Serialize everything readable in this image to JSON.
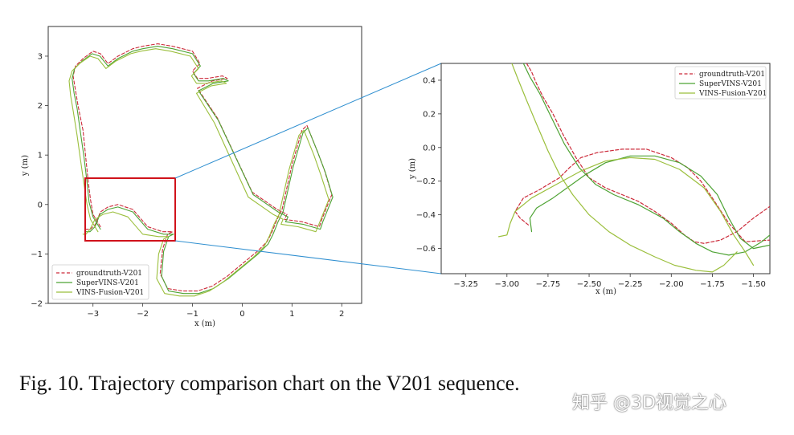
{
  "caption": "Fig. 10.  Trajectory comparison chart on the V201 sequence.",
  "watermark": "知乎 @3D视觉之心",
  "colors": {
    "groundtruth": "#cc2b3a",
    "supervins": "#4ea334",
    "vinsfusion": "#9bbf3c",
    "highlight_box": "#d0121b",
    "zoom_lines": "#2f8fd0"
  },
  "chart_data": [
    {
      "type": "line",
      "panel": "main",
      "xlabel": "x (m)",
      "ylabel": "y (m)",
      "xlim": [
        -3.9,
        2.4
      ],
      "ylim": [
        -2.0,
        3.6
      ],
      "xticks": [
        -3,
        -2,
        -1,
        0,
        1,
        2
      ],
      "yticks": [
        -2,
        -1,
        0,
        1,
        2,
        3
      ],
      "grid": false,
      "legend_position": "lower-left",
      "highlight_region": {
        "x": [
          -3.25,
          -1.4
        ],
        "y": [
          -0.75,
          0.5
        ]
      },
      "series": [
        {
          "name": "groundtruth-V201",
          "style": "dashed",
          "color_key": "groundtruth",
          "x": [
            -2.85,
            -3.0,
            -3.05,
            -3.1,
            -3.15,
            -3.2,
            -3.3,
            -3.35,
            -3.4,
            -3.35,
            -3.2,
            -3.0,
            -2.85,
            -2.7,
            -2.5,
            -2.2,
            -2.0,
            -1.7,
            -1.4,
            -1.0,
            -0.85,
            -1.0,
            -0.9,
            -0.7,
            -0.4,
            -0.3,
            -0.6,
            -0.9,
            -0.5,
            0.2,
            0.7,
            0.9,
            0.85,
            1.2,
            1.55,
            1.6,
            1.8,
            1.65,
            1.5,
            1.3,
            1.2,
            1.0,
            0.8,
            0.7,
            0.6,
            0.5,
            0.3,
            0.0,
            -0.3,
            -0.6,
            -0.9,
            -1.2,
            -1.5,
            -1.65,
            -1.6,
            -1.5,
            -1.4,
            -1.6,
            -1.9,
            -2.2,
            -2.5,
            -2.7,
            -2.85,
            -2.95,
            -3.05,
            -3.15
          ],
          "y": [
            -0.45,
            -0.2,
            0.1,
            0.5,
            1.0,
            1.5,
            2.0,
            2.3,
            2.6,
            2.8,
            2.95,
            3.1,
            3.05,
            2.85,
            3.0,
            3.15,
            3.2,
            3.25,
            3.2,
            3.1,
            2.85,
            2.7,
            2.55,
            2.55,
            2.6,
            2.55,
            2.5,
            2.35,
            1.75,
            0.25,
            -0.1,
            -0.2,
            -0.3,
            -0.35,
            -0.45,
            -0.3,
            0.2,
            0.7,
            1.1,
            1.6,
            1.5,
            0.8,
            -0.1,
            -0.3,
            -0.55,
            -0.75,
            -0.95,
            -1.2,
            -1.45,
            -1.65,
            -1.75,
            -1.75,
            -1.7,
            -1.4,
            -0.9,
            -0.6,
            -0.55,
            -0.55,
            -0.45,
            -0.1,
            0.0,
            -0.05,
            -0.15,
            -0.4,
            -0.5,
            -0.5
          ]
        },
        {
          "name": "SuperVINS-V201",
          "style": "solid",
          "color_key": "supervins",
          "x": [
            -2.85,
            -3.0,
            -3.08,
            -3.12,
            -3.18,
            -3.25,
            -3.32,
            -3.38,
            -3.42,
            -3.37,
            -3.22,
            -3.02,
            -2.86,
            -2.7,
            -2.5,
            -2.2,
            -2.0,
            -1.7,
            -1.4,
            -1.0,
            -0.84,
            -0.98,
            -0.88,
            -0.68,
            -0.38,
            -0.28,
            -0.58,
            -0.88,
            -0.48,
            0.22,
            0.72,
            0.92,
            0.87,
            1.22,
            1.57,
            1.62,
            1.82,
            1.67,
            1.52,
            1.32,
            1.22,
            1.02,
            0.82,
            0.72,
            0.62,
            0.52,
            0.32,
            0.02,
            -0.28,
            -0.58,
            -0.88,
            -1.18,
            -1.48,
            -1.62,
            -1.58,
            -1.48,
            -1.38,
            -1.58,
            -1.9,
            -2.2,
            -2.5,
            -2.7,
            -2.86,
            -2.96,
            -3.06,
            -3.14
          ],
          "y": [
            -0.5,
            -0.25,
            0.05,
            0.45,
            0.95,
            1.45,
            1.95,
            2.25,
            2.55,
            2.75,
            2.9,
            3.05,
            3.0,
            2.8,
            2.95,
            3.1,
            3.15,
            3.2,
            3.15,
            3.05,
            2.8,
            2.65,
            2.5,
            2.5,
            2.55,
            2.5,
            2.45,
            2.3,
            1.7,
            0.2,
            -0.15,
            -0.25,
            -0.35,
            -0.4,
            -0.5,
            -0.35,
            0.15,
            0.65,
            1.05,
            1.55,
            1.45,
            0.75,
            -0.15,
            -0.35,
            -0.6,
            -0.8,
            -1.0,
            -1.25,
            -1.5,
            -1.7,
            -1.8,
            -1.8,
            -1.75,
            -1.45,
            -0.95,
            -0.65,
            -0.6,
            -0.6,
            -0.5,
            -0.15,
            -0.05,
            -0.1,
            -0.2,
            -0.45,
            -0.55,
            -0.55
          ]
        },
        {
          "name": "VINS-Fusion-V201",
          "style": "solid",
          "color_key": "vinsfusion",
          "x": [
            -2.9,
            -3.05,
            -3.12,
            -3.18,
            -3.25,
            -3.32,
            -3.4,
            -3.45,
            -3.48,
            -3.42,
            -3.27,
            -3.06,
            -2.9,
            -2.74,
            -2.54,
            -2.24,
            -2.04,
            -1.74,
            -1.44,
            -1.04,
            -0.88,
            -1.02,
            -0.92,
            -0.72,
            -0.42,
            -0.32,
            -0.62,
            -0.92,
            -0.56,
            0.12,
            0.62,
            0.82,
            0.78,
            1.12,
            1.48,
            1.54,
            1.74,
            1.58,
            1.44,
            1.24,
            1.14,
            0.94,
            0.74,
            0.64,
            0.54,
            0.44,
            0.24,
            -0.06,
            -0.36,
            -0.66,
            -0.96,
            -1.26,
            -1.56,
            -1.72,
            -1.68,
            -1.58,
            -1.48,
            -1.68,
            -2.0,
            -2.3,
            -2.6,
            -2.8,
            -2.96,
            -3.06,
            -3.14,
            -3.2
          ],
          "y": [
            -0.55,
            -0.3,
            0.0,
            0.4,
            0.9,
            1.4,
            1.9,
            2.2,
            2.5,
            2.7,
            2.85,
            3.0,
            2.95,
            2.75,
            2.9,
            3.05,
            3.1,
            3.15,
            3.1,
            3.0,
            2.75,
            2.6,
            2.45,
            2.45,
            2.5,
            2.45,
            2.4,
            2.25,
            1.65,
            0.15,
            -0.2,
            -0.3,
            -0.4,
            -0.45,
            -0.55,
            -0.4,
            0.1,
            0.6,
            1.0,
            1.5,
            1.4,
            0.7,
            -0.2,
            -0.4,
            -0.65,
            -0.85,
            -1.05,
            -1.3,
            -1.55,
            -1.75,
            -1.85,
            -1.85,
            -1.8,
            -1.5,
            -1.0,
            -0.7,
            -0.65,
            -0.65,
            -0.6,
            -0.25,
            -0.15,
            -0.2,
            -0.3,
            -0.5,
            -0.6,
            -0.6
          ]
        }
      ]
    },
    {
      "type": "line",
      "panel": "zoom",
      "xlabel": "x (m)",
      "ylabel": "y (m)",
      "xlim": [
        -3.4,
        -1.4
      ],
      "ylim": [
        -0.75,
        0.5
      ],
      "xticks": [
        -3.25,
        -3.0,
        -2.75,
        -2.5,
        -2.25,
        -2.0,
        -1.75,
        -1.5
      ],
      "xtick_labels": [
        "−3.25",
        "−3.00",
        "−2.75",
        "−2.50",
        "−2.25",
        "−2.00",
        "−1.75",
        "−1.50"
      ],
      "yticks": [
        -0.6,
        -0.4,
        -0.2,
        0.0,
        0.2,
        0.4
      ],
      "ytick_labels": [
        "−0.6",
        "−0.4",
        "−0.2",
        "0.0",
        "0.2",
        "0.4"
      ],
      "grid": false,
      "legend_position": "upper-right",
      "series": [
        {
          "name": "groundtruth-V201",
          "style": "dashed",
          "color_key": "groundtruth",
          "x": [
            -2.87,
            -2.92,
            -2.95,
            -2.9,
            -2.8,
            -2.75,
            -2.68,
            -2.62,
            -2.55,
            -2.45,
            -2.3,
            -2.15,
            -2.0,
            -1.9,
            -1.82,
            -1.75,
            -1.65,
            -1.55,
            -1.4
          ],
          "y": [
            -0.46,
            -0.42,
            -0.38,
            -0.3,
            -0.25,
            -0.22,
            -0.18,
            -0.12,
            -0.06,
            -0.03,
            -0.01,
            -0.01,
            -0.06,
            -0.12,
            -0.2,
            -0.3,
            -0.45,
            -0.56,
            -0.55
          ],
          "x2": [
            -2.88,
            -2.85,
            -2.82,
            -2.78,
            -2.72,
            -2.66,
            -2.58,
            -2.5,
            -2.4,
            -2.3,
            -2.2,
            -2.1,
            -2.0,
            -1.92,
            -1.86,
            -1.8,
            -1.7,
            -1.6,
            -1.5,
            -1.4
          ],
          "y2": [
            0.5,
            0.45,
            0.38,
            0.3,
            0.2,
            0.08,
            -0.06,
            -0.18,
            -0.24,
            -0.28,
            -0.32,
            -0.38,
            -0.45,
            -0.52,
            -0.56,
            -0.57,
            -0.55,
            -0.5,
            -0.42,
            -0.35
          ]
        },
        {
          "name": "SuperVINS-V201",
          "style": "solid",
          "color_key": "supervins",
          "x": [
            -2.85,
            -2.86,
            -2.82,
            -2.72,
            -2.62,
            -2.52,
            -2.4,
            -2.25,
            -2.1,
            -1.95,
            -1.82,
            -1.72,
            -1.65,
            -1.58,
            -1.5,
            -1.4
          ],
          "y": [
            -0.5,
            -0.42,
            -0.36,
            -0.3,
            -0.23,
            -0.16,
            -0.09,
            -0.05,
            -0.05,
            -0.09,
            -0.17,
            -0.28,
            -0.42,
            -0.54,
            -0.6,
            -0.58
          ],
          "x2": [
            -2.9,
            -2.86,
            -2.8,
            -2.73,
            -2.65,
            -2.56,
            -2.46,
            -2.35,
            -2.2,
            -2.05,
            -1.95,
            -1.85,
            -1.75,
            -1.65,
            -1.55,
            -1.45,
            -1.4
          ],
          "y2": [
            0.5,
            0.42,
            0.32,
            0.18,
            0.02,
            -0.12,
            -0.22,
            -0.28,
            -0.34,
            -0.42,
            -0.5,
            -0.57,
            -0.62,
            -0.64,
            -0.62,
            -0.56,
            -0.52
          ]
        },
        {
          "name": "VINS-Fusion-V201",
          "style": "solid",
          "color_key": "vinsfusion",
          "x": [
            -3.05,
            -3.0,
            -2.98,
            -2.95,
            -2.85,
            -2.7,
            -2.55,
            -2.4,
            -2.25,
            -2.1,
            -1.95,
            -1.8,
            -1.7,
            -1.62,
            -1.55,
            -1.5
          ],
          "y": [
            -0.53,
            -0.52,
            -0.45,
            -0.38,
            -0.3,
            -0.22,
            -0.14,
            -0.08,
            -0.06,
            -0.07,
            -0.13,
            -0.24,
            -0.38,
            -0.52,
            -0.62,
            -0.7
          ],
          "x2": [
            -2.97,
            -2.93,
            -2.88,
            -2.82,
            -2.75,
            -2.68,
            -2.6,
            -2.5,
            -2.38,
            -2.25,
            -2.1,
            -1.98,
            -1.85,
            -1.75,
            -1.68,
            -1.6
          ],
          "y2": [
            0.5,
            0.4,
            0.28,
            0.14,
            -0.02,
            -0.16,
            -0.28,
            -0.4,
            -0.5,
            -0.58,
            -0.65,
            -0.7,
            -0.73,
            -0.74,
            -0.7,
            -0.62
          ]
        }
      ]
    }
  ]
}
